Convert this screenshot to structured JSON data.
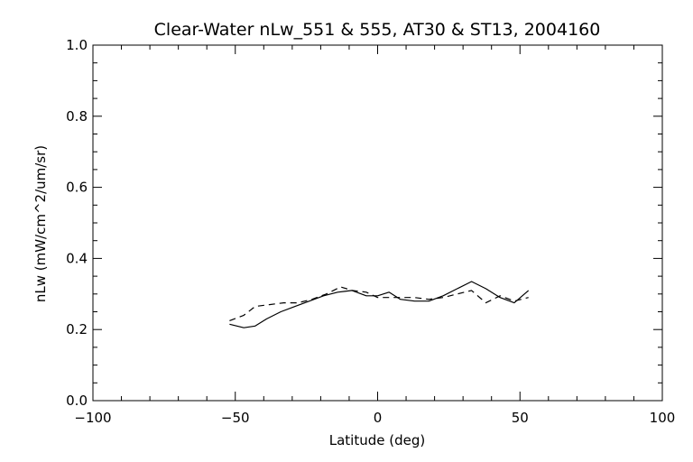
{
  "chart_data": {
    "type": "line",
    "title": "Clear-Water nLw_551 & 555, AT30 & ST13, 2004160",
    "xlabel": "Latitude (deg)",
    "ylabel": "nLw (mW/cm^2/um/sr)",
    "xlim": [
      -100,
      100
    ],
    "ylim": [
      0.0,
      1.0
    ],
    "xticks": [
      -100,
      -50,
      0,
      50,
      100
    ],
    "xtick_labels": [
      "−100",
      "−50",
      "0",
      "50",
      "100"
    ],
    "yticks": [
      0.0,
      0.2,
      0.4,
      0.6,
      0.8,
      1.0
    ],
    "ytick_labels": [
      "0.0",
      "0.2",
      "0.4",
      "0.6",
      "0.8",
      "1.0"
    ],
    "grid": false,
    "series": [
      {
        "style": "solid",
        "color": "#000000",
        "x": [
          -52,
          -47,
          -43,
          -39,
          -34,
          -29,
          -24,
          -19,
          -14,
          -9,
          -4,
          0,
          4,
          8,
          13,
          18,
          23,
          28,
          33,
          38,
          43,
          48,
          53
        ],
        "y": [
          0.215,
          0.205,
          0.21,
          0.23,
          0.25,
          0.265,
          0.28,
          0.295,
          0.305,
          0.31,
          0.295,
          0.295,
          0.305,
          0.285,
          0.28,
          0.28,
          0.295,
          0.315,
          0.335,
          0.315,
          0.29,
          0.275,
          0.31
        ]
      },
      {
        "style": "dashed",
        "color": "#000000",
        "x": [
          -52,
          -47,
          -43,
          -38,
          -33,
          -28,
          -23,
          -18,
          -13,
          -9,
          -4,
          0,
          4,
          8,
          13,
          18,
          23,
          28,
          33,
          38,
          43,
          48,
          53
        ],
        "y": [
          0.225,
          0.24,
          0.265,
          0.27,
          0.275,
          0.275,
          0.285,
          0.3,
          0.32,
          0.31,
          0.305,
          0.29,
          0.29,
          0.29,
          0.29,
          0.285,
          0.29,
          0.3,
          0.31,
          0.275,
          0.295,
          0.28,
          0.29
        ]
      }
    ]
  }
}
